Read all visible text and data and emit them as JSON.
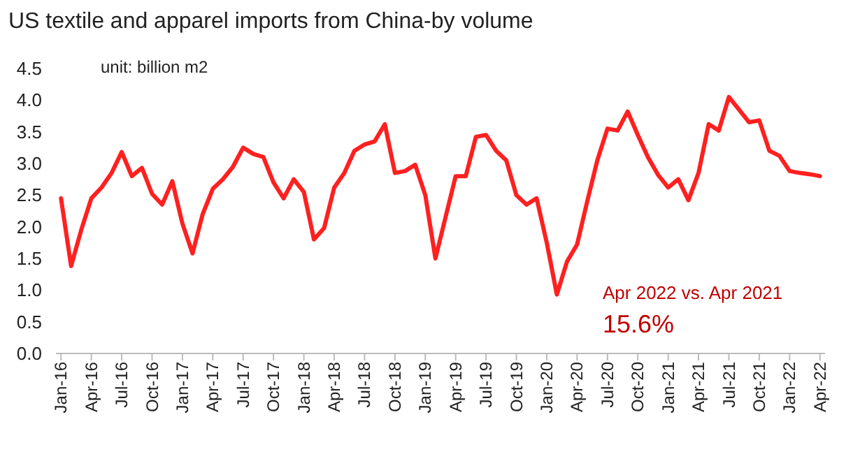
{
  "chart_data": {
    "type": "line",
    "title": "US textile and apparel imports from China-by volume",
    "annotations": [
      "unit: billion m2",
      "Apr 2022 vs. Apr 2021",
      "15.6%"
    ],
    "categories": [
      "Jan-16",
      null,
      null,
      "Apr-16",
      null,
      null,
      "Jul-16",
      null,
      null,
      "Oct-16",
      null,
      null,
      "Jan-17",
      null,
      null,
      "Apr-17",
      null,
      null,
      "Jul-17",
      null,
      null,
      "Oct-17",
      null,
      null,
      "Jan-18",
      null,
      null,
      "Apr-18",
      null,
      null,
      "Jul-18",
      null,
      null,
      "Oct-18",
      null,
      null,
      "Jan-19",
      null,
      null,
      "Apr-19",
      null,
      null,
      "Jul-19",
      null,
      null,
      "Oct-19",
      null,
      null,
      "Jan-20",
      null,
      null,
      "Apr-20",
      null,
      null,
      "Jul-20",
      null,
      null,
      "Oct-20",
      null,
      null,
      "Jan-21",
      null,
      null,
      "Apr-21",
      null,
      null,
      "Jul-21",
      null,
      null,
      "Oct-21",
      null,
      null,
      "Jan-22",
      null,
      null,
      "Apr-22"
    ],
    "series": [
      {
        "color": "#ff2020",
        "values": [
          2.45,
          1.38,
          1.95,
          2.45,
          2.62,
          2.85,
          3.18,
          2.8,
          2.93,
          2.52,
          2.35,
          2.72,
          2.05,
          1.58,
          2.2,
          2.6,
          2.75,
          2.95,
          3.25,
          3.15,
          3.1,
          2.7,
          2.45,
          2.75,
          2.55,
          1.8,
          1.98,
          2.62,
          2.85,
          3.2,
          3.3,
          3.35,
          3.62,
          2.85,
          2.88,
          2.98,
          2.5,
          1.5,
          2.15,
          2.8,
          2.8,
          3.42,
          3.45,
          3.2,
          3.05,
          2.5,
          2.35,
          2.45,
          1.75,
          0.93,
          1.45,
          1.72,
          2.4,
          3.05,
          3.55,
          3.52,
          3.82,
          3.45,
          3.1,
          2.82,
          2.62,
          2.75,
          2.42,
          2.85,
          3.62,
          3.52,
          4.05,
          3.85,
          3.65,
          3.68,
          3.2,
          3.12,
          2.88,
          2.85,
          2.83,
          2.8
        ]
      }
    ],
    "ylim": [
      0,
      4.5
    ],
    "yticks": [
      {
        "value": 0,
        "label": "0.0"
      },
      {
        "value": 0.5,
        "label": "0.5"
      },
      {
        "value": 1,
        "label": "1.0"
      },
      {
        "value": 1.5,
        "label": "1.5"
      },
      {
        "value": 2,
        "label": "2.0"
      },
      {
        "value": 2.5,
        "label": "2.5"
      },
      {
        "value": 3,
        "label": "3.0"
      },
      {
        "value": 3.5,
        "label": "3.5"
      },
      {
        "value": 4,
        "label": "4.0"
      },
      {
        "value": 4.5,
        "label": "4.5"
      }
    ],
    "grid": false,
    "marker": "none",
    "line_style": "solid"
  }
}
